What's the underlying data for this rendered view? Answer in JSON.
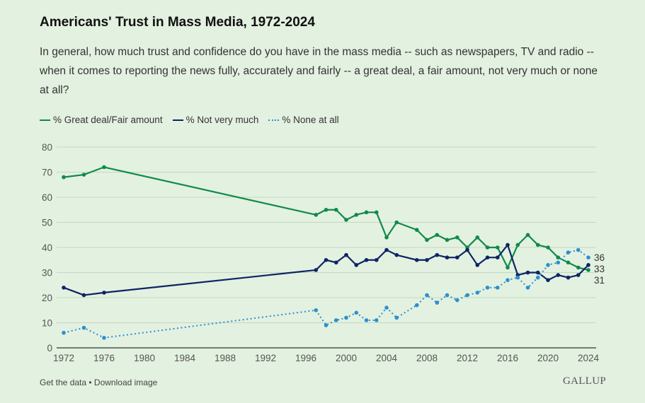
{
  "header": {
    "title": "Americans' Trust in Mass Media, 1972-2024",
    "subtitle": "In general, how much trust and confidence do you have in the mass media -- such as newspapers, TV and radio -- when it comes to reporting the news fully, accurately and fairly -- a great deal, a fair amount, not very much or none at all?"
  },
  "footer": {
    "get_data": "Get the data",
    "separator": " • ",
    "download": "Download image",
    "brand": "GALLUP"
  },
  "chart_data": {
    "type": "line",
    "title": "Americans' Trust in Mass Media, 1972-2024",
    "xlabel": "",
    "ylabel": "",
    "xlim": [
      1972,
      2024
    ],
    "ylim": [
      0,
      80
    ],
    "x_ticks": [
      1972,
      1976,
      1980,
      1984,
      1988,
      1992,
      1996,
      2000,
      2004,
      2008,
      2012,
      2016,
      2020,
      2024
    ],
    "y_ticks": [
      0,
      10,
      20,
      30,
      40,
      50,
      60,
      70,
      80
    ],
    "grid": true,
    "legend": "top-left",
    "x": [
      1972,
      1974,
      1976,
      1997,
      1998,
      1999,
      2000,
      2001,
      2002,
      2003,
      2004,
      2005,
      2007,
      2008,
      2009,
      2010,
      2011,
      2012,
      2013,
      2014,
      2015,
      2016,
      2017,
      2018,
      2019,
      2020,
      2021,
      2022,
      2023,
      2024
    ],
    "series": [
      {
        "name": "% Great deal/Fair amount",
        "color": "#108a4a",
        "style": "solid",
        "values": [
          68,
          69,
          72,
          53,
          55,
          55,
          51,
          53,
          54,
          54,
          44,
          50,
          47,
          43,
          45,
          43,
          44,
          40,
          44,
          40,
          40,
          32,
          41,
          45,
          41,
          40,
          36,
          34,
          32,
          31
        ],
        "end_label": "31"
      },
      {
        "name": "% Not very much",
        "color": "#0d2466",
        "style": "solid",
        "values": [
          24,
          21,
          22,
          31,
          35,
          34,
          37,
          33,
          35,
          35,
          39,
          37,
          35,
          35,
          37,
          36,
          36,
          39,
          33,
          36,
          36,
          41,
          29,
          30,
          30,
          27,
          29,
          28,
          29,
          33
        ],
        "end_label": "33"
      },
      {
        "name": "% None at all",
        "color": "#2d8fcf",
        "style": "dotted",
        "values": [
          6,
          8,
          4,
          15,
          9,
          11,
          12,
          14,
          11,
          11,
          16,
          12,
          17,
          21,
          18,
          21,
          19,
          21,
          22,
          24,
          24,
          27,
          28,
          24,
          28,
          33,
          34,
          38,
          39,
          36
        ],
        "end_label": "36"
      }
    ]
  }
}
